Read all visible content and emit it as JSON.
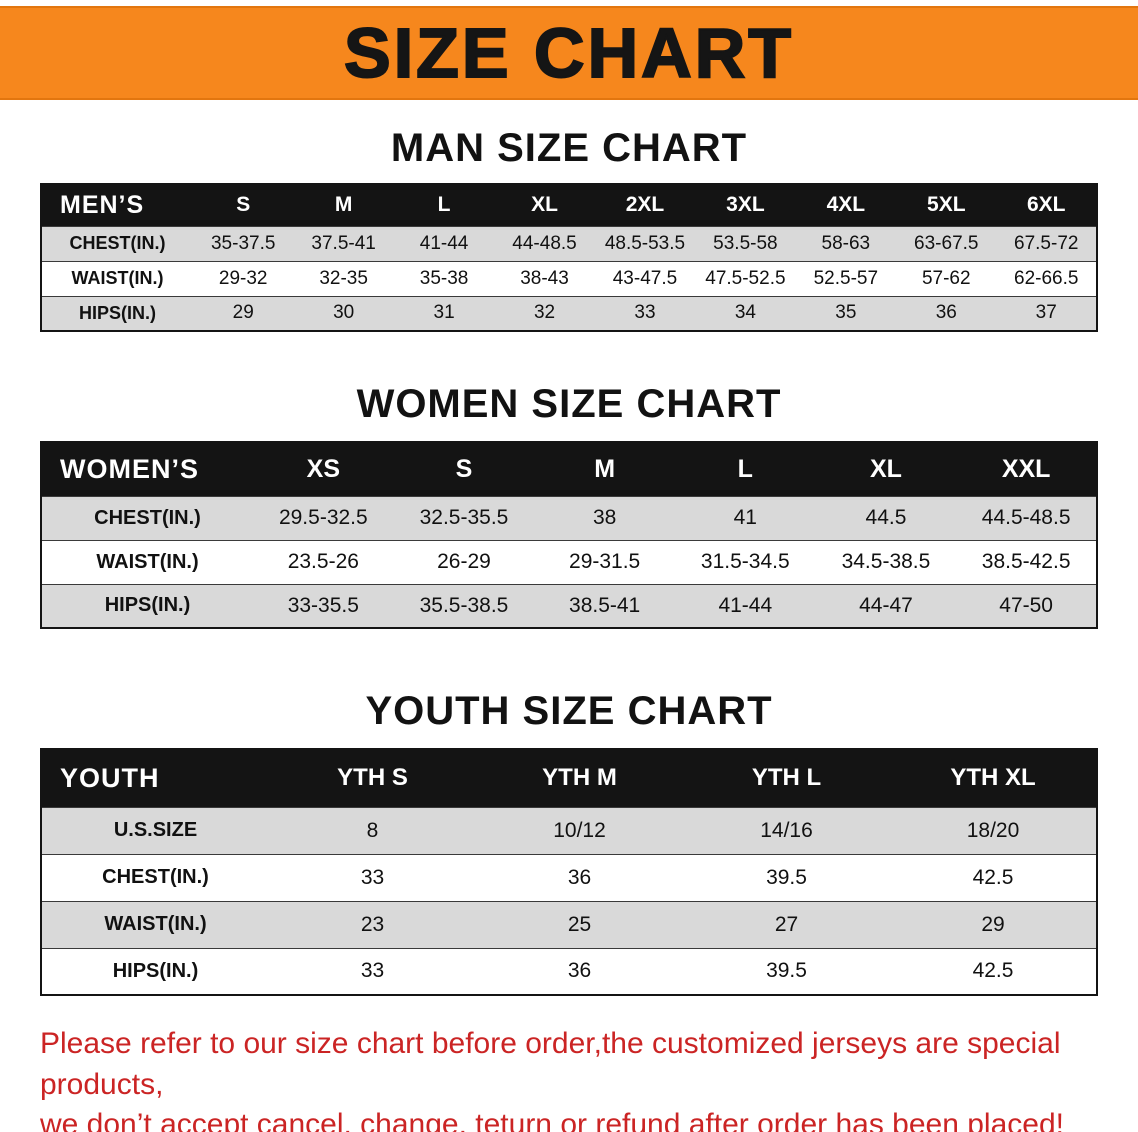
{
  "banner": {
    "title": "SIZE CHART",
    "bg_color": "#f6871d",
    "text_color": "#151515"
  },
  "sections": {
    "men": {
      "heading": "MAN SIZE CHART",
      "table": {
        "header": [
          "MEN’S",
          "S",
          "M",
          "L",
          "XL",
          "2XL",
          "3XL",
          "4XL",
          "5XL",
          "6XL"
        ],
        "rows": [
          {
            "label": "CHEST(IN.)",
            "values": [
              "35-37.5",
              "37.5-41",
              "41-44",
              "44-48.5",
              "48.5-53.5",
              "53.5-58",
              "58-63",
              "63-67.5",
              "67.5-72"
            ]
          },
          {
            "label": "WAIST(IN.)",
            "values": [
              "29-32",
              "32-35",
              "35-38",
              "38-43",
              "43-47.5",
              "47.5-52.5",
              "52.5-57",
              "57-62",
              "62-66.5"
            ]
          },
          {
            "label": "HIPS(IN.)",
            "values": [
              "29",
              "30",
              "31",
              "32",
              "33",
              "34",
              "35",
              "36",
              "37"
            ]
          }
        ]
      }
    },
    "women": {
      "heading": "WOMEN SIZE CHART",
      "table": {
        "header": [
          "WOMEN’S",
          "XS",
          "S",
          "M",
          "L",
          "XL",
          "XXL"
        ],
        "rows": [
          {
            "label": "CHEST(IN.)",
            "values": [
              "29.5-32.5",
              "32.5-35.5",
              "38",
              "41",
              "44.5",
              "44.5-48.5"
            ]
          },
          {
            "label": "WAIST(IN.)",
            "values": [
              "23.5-26",
              "26-29",
              "29-31.5",
              "31.5-34.5",
              "34.5-38.5",
              "38.5-42.5"
            ]
          },
          {
            "label": "HIPS(IN.)",
            "values": [
              "33-35.5",
              "35.5-38.5",
              "38.5-41",
              "41-44",
              "44-47",
              "47-50"
            ]
          }
        ]
      }
    },
    "youth": {
      "heading": "YOUTH SIZE CHART",
      "table": {
        "header": [
          "YOUTH",
          "YTH S",
          "YTH M",
          "YTH L",
          "YTH XL"
        ],
        "rows": [
          {
            "label": "U.S.SIZE",
            "values": [
              "8",
              "10/12",
              "14/16",
              "18/20"
            ]
          },
          {
            "label": "CHEST(IN.)",
            "values": [
              "33",
              "36",
              "39.5",
              "42.5"
            ]
          },
          {
            "label": "WAIST(IN.)",
            "values": [
              "23",
              "25",
              "27",
              "29"
            ]
          },
          {
            "label": "HIPS(IN.)",
            "values": [
              "33",
              "36",
              "39.5",
              "42.5"
            ]
          }
        ]
      }
    }
  },
  "note": {
    "line1": "Please refer to our size chart before order,the customized jerseys are special products,",
    "line2": "we don’t accept cancel, change, teturn or refund after order has been placed!",
    "text_color": "#cb2424"
  },
  "colors": {
    "table_header_bg": "#141414",
    "row_shade": "#d9d9d9"
  }
}
